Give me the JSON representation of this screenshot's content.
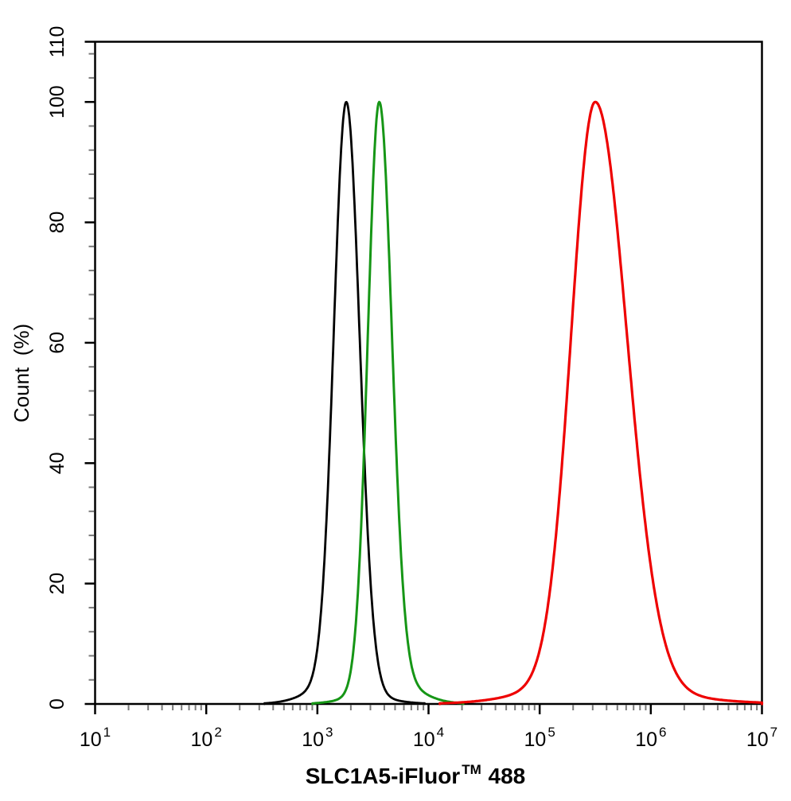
{
  "figure": {
    "background": "#ffffff",
    "axis_color": "#000000",
    "minor_tick_color": "#7a7a7a"
  },
  "chart_data": {
    "type": "line",
    "subtype": "flow-cytometry-histogram-overlay",
    "title": "",
    "grid": false,
    "legend": null,
    "x_axis": {
      "scale": "log10",
      "min": 10,
      "max": 10000000,
      "label_full": "SLC1A5-iFluor™ 488",
      "label_main": "SLC1A5-iFluor",
      "label_sup": "TM",
      "label_tail": " 488",
      "major_tick_base": "10",
      "major_tick_exponents": [
        "1",
        "2",
        "3",
        "4",
        "5",
        "6",
        "7"
      ],
      "minor_ticks_per_decade": [
        2,
        3,
        4,
        5,
        6,
        7,
        8,
        9
      ]
    },
    "y_axis": {
      "label": "Count  (%)",
      "min": 0,
      "max": 110,
      "major_ticks": [
        0,
        20,
        40,
        60,
        80,
        100,
        110
      ],
      "minor_tick_step": 4
    },
    "series": [
      {
        "name": "black-curve",
        "color": "#000000",
        "peak_x": 1800,
        "peak_log10": 3.26,
        "peak_count_pct": 100,
        "fwhm_decades": 0.27,
        "sigma_left": 0.112,
        "sigma_right": 0.12,
        "flare_left": 0.045,
        "flare_right": 0.02,
        "stroke_width": 2.8
      },
      {
        "name": "green-curve",
        "color": "#169616",
        "peak_x": 3600,
        "peak_log10": 3.557,
        "peak_count_pct": 100,
        "fwhm_decades": 0.25,
        "sigma_left": 0.103,
        "sigma_right": 0.112,
        "flare_left": 0.02,
        "flare_right": 0.055,
        "stroke_width": 3
      },
      {
        "name": "red-curve",
        "color": "#ee0000",
        "peak_x": 320000,
        "peak_log10": 5.5,
        "peak_count_pct": 100,
        "fwhm_decades": 0.59,
        "sigma_left": 0.215,
        "sigma_right": 0.285,
        "flare_left": 0.04,
        "flare_right": 0.025,
        "stroke_width": 3.2
      }
    ]
  }
}
